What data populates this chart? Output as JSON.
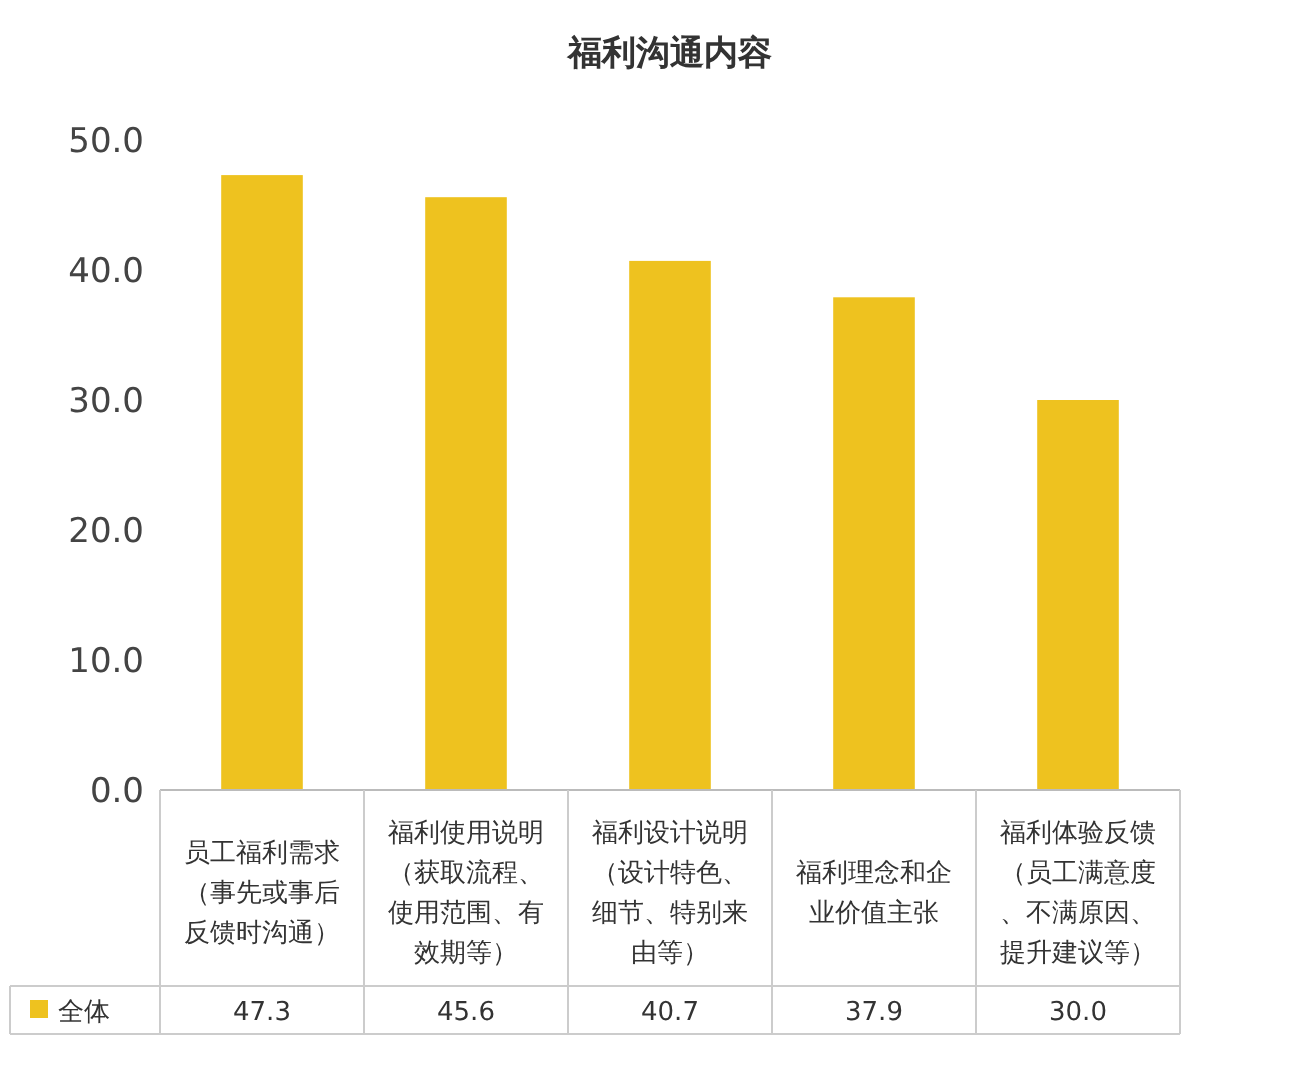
{
  "chart_data": {
    "type": "bar",
    "title": "福利沟通内容",
    "categories": [
      "员工福利需求（事先或事后反馈时沟通）",
      "福利使用说明（获取流程、使用范围、有效期等）",
      "福利设计说明（设计特色、细节、特别来由等）",
      "福利理念和企业价值主张",
      "福利体验反馈（员工满意度、不满原因、提升建议等）"
    ],
    "series": [
      {
        "name": "全体",
        "color": "#eec21f",
        "values": [
          47.3,
          45.6,
          40.7,
          37.9,
          30.0
        ],
        "value_labels": [
          "47.3",
          "45.6",
          "40.7",
          "37.9",
          "30.0"
        ]
      }
    ],
    "ylim": [
      0,
      50
    ],
    "yticks": [
      {
        "value": 0,
        "label": "0.0"
      },
      {
        "value": 10,
        "label": "10.0"
      },
      {
        "value": 20,
        "label": "20.0"
      },
      {
        "value": 30,
        "label": "30.0"
      },
      {
        "value": 40,
        "label": "40.0"
      },
      {
        "value": 50,
        "label": "50.0"
      }
    ],
    "grid": false,
    "legend": "bottom"
  }
}
